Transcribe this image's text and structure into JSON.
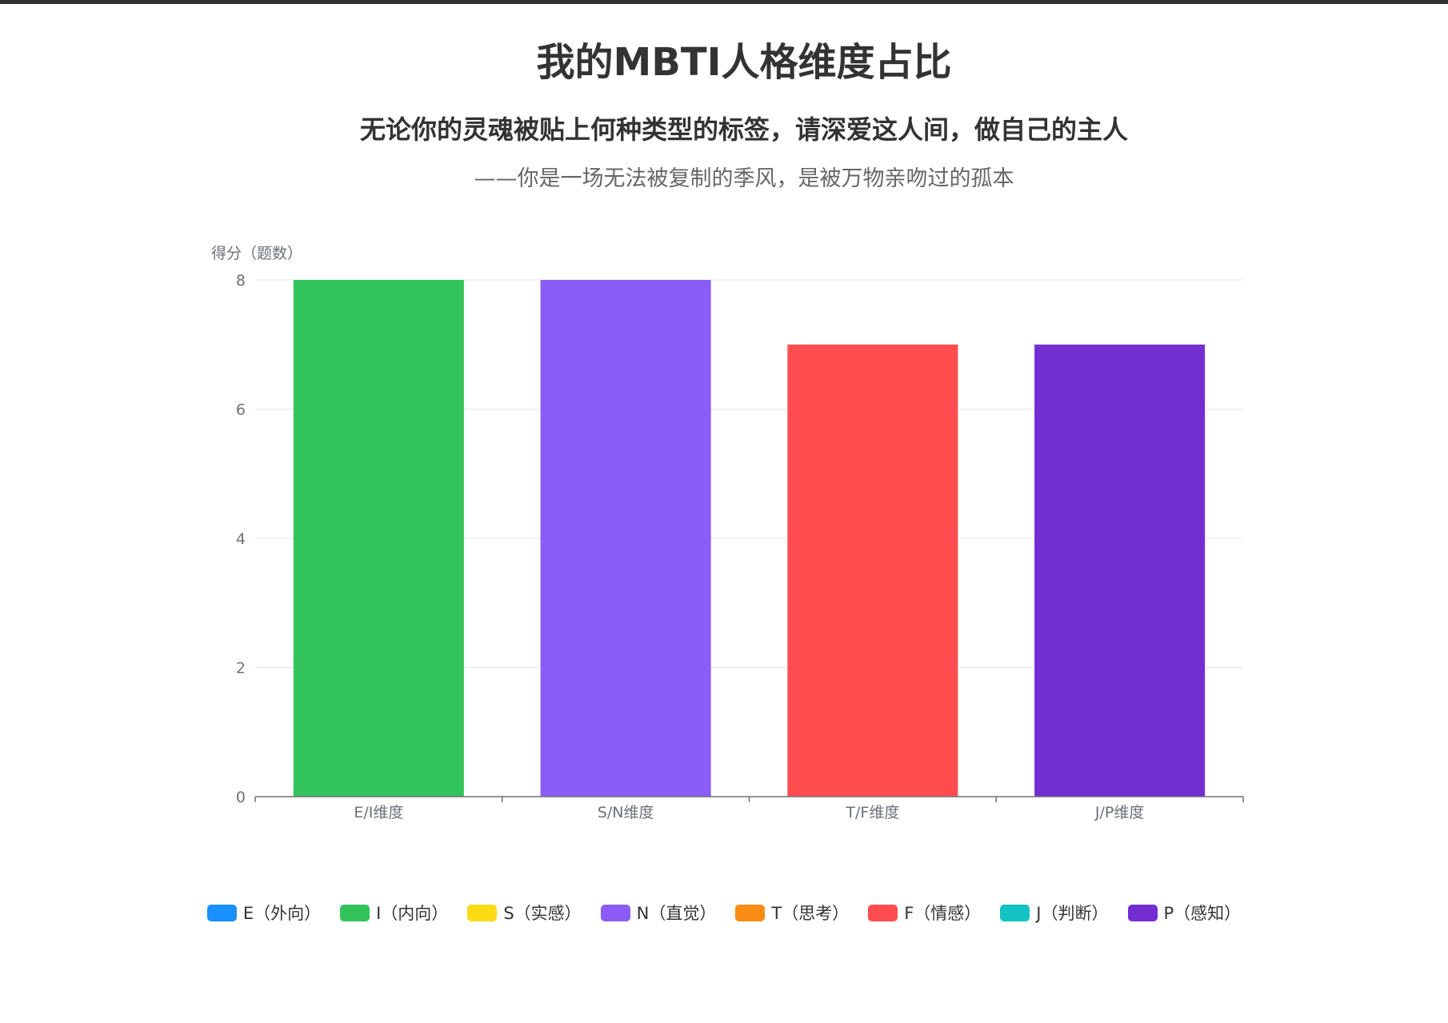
{
  "header": {
    "title": "我的MBTI人格维度占比",
    "subtitle": "无论你的灵魂被贴上何种类型的标签，请深爱这人间，做自己的主人",
    "quote": "——你是一场无法被复制的季风，是被万物亲吻过的孤本"
  },
  "chart_data": {
    "type": "bar",
    "ylabel": "得分（题数）",
    "xlabel": "",
    "ylim": [
      0,
      8
    ],
    "yticks": [
      0,
      2,
      4,
      6,
      8
    ],
    "grid": true,
    "categories": [
      "E/I维度",
      "S/N维度",
      "T/F维度",
      "J/P维度"
    ],
    "bars": [
      {
        "category": "E/I维度",
        "series": "I（内向）",
        "value": 8,
        "color": "#33c35b"
      },
      {
        "category": "S/N维度",
        "series": "N（直觉）",
        "value": 8,
        "color": "#8b5cf6"
      },
      {
        "category": "T/F维度",
        "series": "F（情感）",
        "value": 7,
        "color": "#ff4d4f"
      },
      {
        "category": "J/P维度",
        "series": "P（感知）",
        "value": 7,
        "color": "#722ed1"
      }
    ],
    "legend_position": "bottom",
    "legend": [
      {
        "name": "E（外向）",
        "color": "#1890ff"
      },
      {
        "name": "I（内向）",
        "color": "#33c35b"
      },
      {
        "name": "S（实感）",
        "color": "#fadb14"
      },
      {
        "name": "N（直觉）",
        "color": "#8b5cf6"
      },
      {
        "name": "T（思考）",
        "color": "#fa8c16"
      },
      {
        "name": "F（情感）",
        "color": "#ff4d4f"
      },
      {
        "name": "J（判断）",
        "color": "#13c2c2"
      },
      {
        "name": "P（感知）",
        "color": "#722ed1"
      }
    ]
  }
}
